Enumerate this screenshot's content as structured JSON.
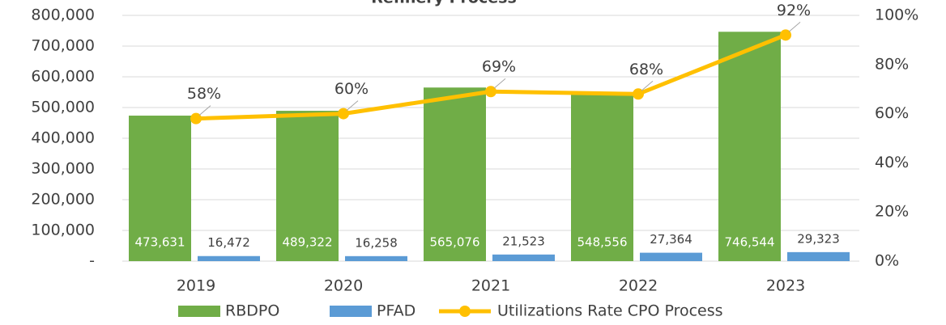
{
  "chart_data": {
    "type": "bar",
    "title": "Refinery Process",
    "categories": [
      "2019",
      "2020",
      "2021",
      "2022",
      "2023"
    ],
    "series": [
      {
        "name": "RBDPO",
        "color": "#70ad47",
        "values": [
          473631,
          489322,
          565076,
          548556,
          746544
        ],
        "value_labels": [
          "473,631",
          "489,322",
          "565,076",
          "548,556",
          "746,544"
        ]
      },
      {
        "name": "PFAD",
        "color": "#5b9bd5",
        "values": [
          16472,
          16258,
          21523,
          27364,
          29323
        ],
        "value_labels": [
          "16,472",
          "16,258",
          "21,523",
          "27,364",
          "29,323"
        ]
      },
      {
        "name": "Utilizations Rate CPO Process",
        "type": "line",
        "axis": "y2",
        "color": "#ffc000",
        "values": [
          58,
          60,
          69,
          68,
          92
        ],
        "value_labels": [
          "58%",
          "60%",
          "69%",
          "68%",
          "92%"
        ]
      }
    ],
    "ylim": [
      0,
      800000
    ],
    "yticks": [
      {
        "value": 0,
        "label": "-"
      },
      {
        "value": 100000,
        "label": "100,000"
      },
      {
        "value": 200000,
        "label": "200,000"
      },
      {
        "value": 300000,
        "label": "300,000"
      },
      {
        "value": 400000,
        "label": "400,000"
      },
      {
        "value": 500000,
        "label": "500,000"
      },
      {
        "value": 600000,
        "label": "600,000"
      },
      {
        "value": 700000,
        "label": "700,000"
      },
      {
        "value": 800000,
        "label": "800,000"
      }
    ],
    "y2lim": [
      0,
      100
    ],
    "y2ticks": [
      {
        "value": 0,
        "label": "0%"
      },
      {
        "value": 20,
        "label": "20%"
      },
      {
        "value": 40,
        "label": "40%"
      },
      {
        "value": 60,
        "label": "60%"
      },
      {
        "value": 80,
        "label": "80%"
      },
      {
        "value": 100,
        "label": "100%"
      }
    ],
    "grid": true,
    "legend": "bottom"
  }
}
